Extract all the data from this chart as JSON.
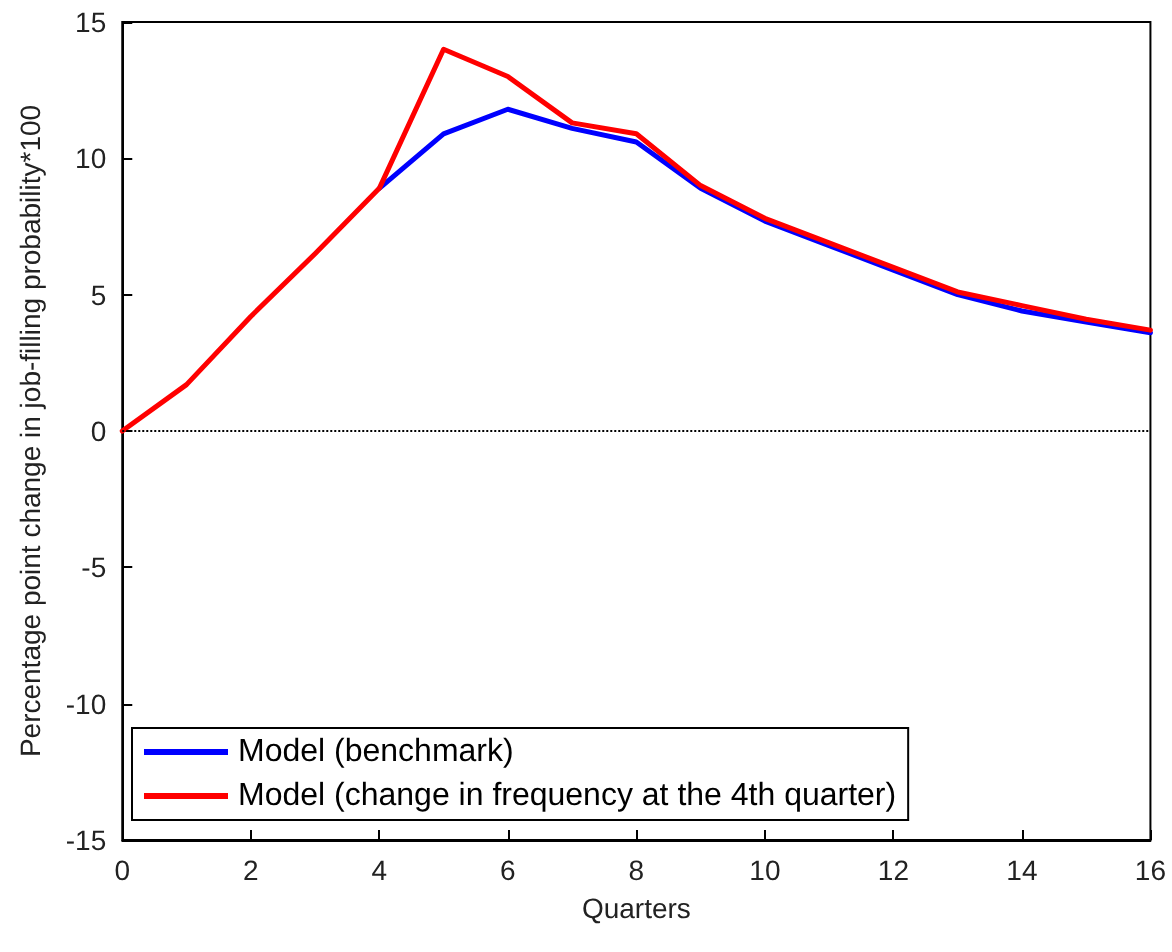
{
  "chart_data": {
    "type": "line",
    "xlabel": "Quarters",
    "ylabel": "Percentage point change in job-filling probability*100",
    "x": [
      0,
      1,
      2,
      3,
      4,
      5,
      6,
      7,
      8,
      9,
      10,
      11,
      12,
      13,
      14,
      15,
      16
    ],
    "series": [
      {
        "name": "Model (benchmark)",
        "color": "#0000ff",
        "values": [
          null,
          null,
          null,
          null,
          8.9,
          10.9,
          11.8,
          11.1,
          10.6,
          8.9,
          7.7,
          6.8,
          5.9,
          5.0,
          4.4,
          4.0,
          3.6
        ]
      },
      {
        "name": "Model (change in frequency at the 4th quarter)",
        "color": "#ff0000",
        "values": [
          0,
          1.7,
          4.2,
          6.5,
          8.9,
          14.0,
          13.0,
          11.3,
          10.9,
          9.0,
          7.8,
          6.9,
          6.0,
          5.1,
          4.6,
          4.1,
          3.7
        ]
      }
    ],
    "xlim": [
      0,
      16
    ],
    "xticks": [
      0,
      2,
      4,
      6,
      8,
      10,
      12,
      14,
      16
    ],
    "ylim": [
      -15,
      15
    ],
    "yticks": [
      -15,
      -10,
      -5,
      0,
      5,
      10,
      15
    ],
    "ref_lines": [
      {
        "axis": "y",
        "value": 0,
        "color": "#000000",
        "line_style": "dotted"
      }
    ],
    "grid": false,
    "legend": "bottom left",
    "marker": "none",
    "line_style": "solid"
  }
}
